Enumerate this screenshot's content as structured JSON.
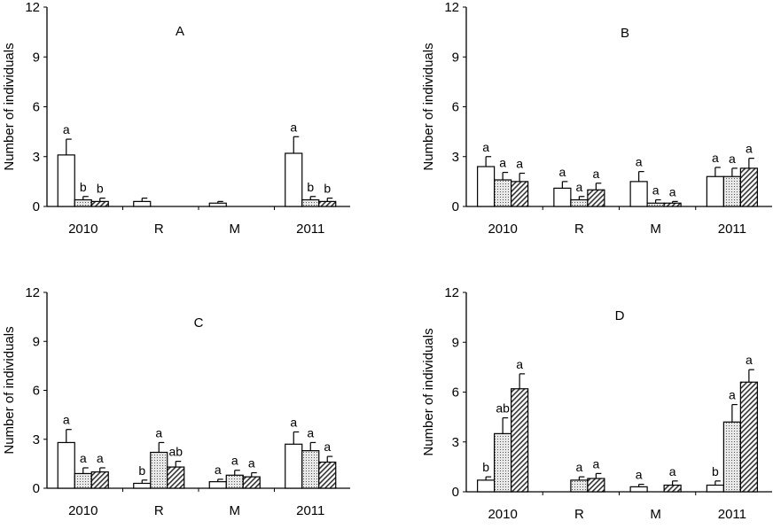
{
  "chart_data": [
    {
      "type": "bar",
      "panel_label": "A",
      "ylabel": "Number of individuals",
      "ylim": [
        0,
        12
      ],
      "yticks": [
        "0",
        "3",
        "6",
        "9",
        "12"
      ],
      "categories": [
        "2010",
        "R",
        "M",
        "2011"
      ],
      "fills": [
        "white",
        "dotted",
        "hatched"
      ],
      "series": [
        {
          "values": [
            3.1,
            0.3,
            0.2,
            3.2
          ],
          "error_upper": [
            4.05,
            0.5,
            0.3,
            4.2
          ],
          "letters": [
            "a",
            "",
            "",
            "a"
          ]
        },
        {
          "values": [
            0.4,
            null,
            null,
            0.4
          ],
          "error_upper": [
            0.6,
            null,
            null,
            0.6
          ],
          "letters": [
            "b",
            "",
            "",
            "b"
          ]
        },
        {
          "values": [
            0.3,
            null,
            null,
            0.3
          ],
          "error_upper": [
            0.5,
            null,
            null,
            0.5
          ],
          "letters": [
            "b",
            "",
            "",
            "b"
          ]
        }
      ]
    },
    {
      "type": "bar",
      "panel_label": "B",
      "ylabel": "Number of individuals",
      "ylim": [
        0,
        12
      ],
      "yticks": [
        "0",
        "3",
        "6",
        "9",
        "12"
      ],
      "categories": [
        "2010",
        "R",
        "M",
        "2011"
      ],
      "fills": [
        "white",
        "dotted",
        "hatched"
      ],
      "series": [
        {
          "values": [
            2.4,
            1.1,
            1.5,
            1.8
          ],
          "error_upper": [
            3.0,
            1.5,
            2.1,
            2.35
          ],
          "letters": [
            "a",
            "a",
            "a",
            "a"
          ]
        },
        {
          "values": [
            1.6,
            0.4,
            0.2,
            1.8
          ],
          "error_upper": [
            2.05,
            0.6,
            0.4,
            2.3
          ],
          "letters": [
            "a",
            "a",
            "a",
            "a"
          ]
        },
        {
          "values": [
            1.5,
            1.0,
            0.2,
            2.3
          ],
          "error_upper": [
            2.0,
            1.4,
            0.3,
            2.9
          ],
          "letters": [
            "a",
            "a",
            "a",
            "a"
          ]
        }
      ]
    },
    {
      "type": "bar",
      "panel_label": "C",
      "ylabel": "Number of individuals",
      "ylim": [
        0,
        12
      ],
      "yticks": [
        "0",
        "3",
        "6",
        "9",
        "12"
      ],
      "categories": [
        "2010",
        "R",
        "M",
        "2011"
      ],
      "fills": [
        "white",
        "dotted",
        "hatched"
      ],
      "series": [
        {
          "values": [
            2.8,
            0.3,
            0.4,
            2.7
          ],
          "error_upper": [
            3.6,
            0.5,
            0.55,
            3.45
          ],
          "letters": [
            "a",
            "b",
            "a",
            "a"
          ]
        },
        {
          "values": [
            0.9,
            2.2,
            0.8,
            2.3
          ],
          "error_upper": [
            1.25,
            2.8,
            1.1,
            2.8
          ],
          "letters": [
            "a",
            "a",
            "a",
            "a"
          ]
        },
        {
          "values": [
            1.0,
            1.3,
            0.7,
            1.6
          ],
          "error_upper": [
            1.25,
            1.65,
            0.95,
            1.95
          ],
          "letters": [
            "a",
            "ab",
            "a",
            "a"
          ]
        }
      ]
    },
    {
      "type": "bar",
      "panel_label": "D",
      "ylabel": "Number of individuals",
      "ylim": [
        0,
        12
      ],
      "yticks": [
        "0",
        "3",
        "6",
        "9",
        "12"
      ],
      "categories": [
        "2010",
        "R",
        "M",
        "2011"
      ],
      "fills": [
        "white",
        "dotted",
        "hatched"
      ],
      "series": [
        {
          "values": [
            0.7,
            null,
            0.3,
            0.4
          ],
          "error_upper": [
            0.9,
            null,
            0.45,
            0.65
          ],
          "letters": [
            "b",
            "",
            "a",
            "b"
          ]
        },
        {
          "values": [
            3.5,
            0.7,
            null,
            4.2
          ],
          "error_upper": [
            4.45,
            0.9,
            null,
            5.25
          ],
          "letters": [
            "ab",
            "a",
            "",
            "a"
          ]
        },
        {
          "values": [
            6.2,
            0.8,
            0.4,
            6.6
          ],
          "error_upper": [
            7.1,
            1.1,
            0.65,
            7.35
          ],
          "letters": [
            "a",
            "a",
            "a",
            "a"
          ]
        }
      ]
    }
  ]
}
